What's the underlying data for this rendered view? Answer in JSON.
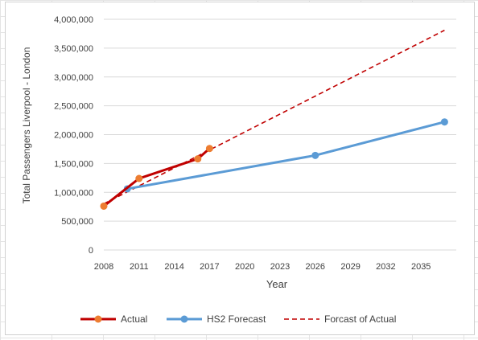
{
  "chart_data": {
    "type": "line",
    "title": "",
    "xlabel": "Year",
    "ylabel": "Total Passengers Liverpool - London",
    "xlim": [
      2008,
      2038
    ],
    "ylim": [
      0,
      4000000
    ],
    "x_ticks": [
      "2008",
      "2011",
      "2014",
      "2017",
      "2020",
      "2023",
      "2026",
      "2029",
      "2032",
      "2035"
    ],
    "y_ticks": [
      "0",
      "500,000",
      "1,000,000",
      "1,500,000",
      "2,000,000",
      "2,500,000",
      "3,000,000",
      "3,500,000",
      "4,000,000"
    ],
    "grid": true,
    "legend_position": "bottom",
    "series": [
      {
        "name": "Actual",
        "color": "#c00000",
        "marker_color": "#ed7d31",
        "style": "solid",
        "x": [
          2008,
          2011,
          2016,
          2017
        ],
        "y": [
          760000,
          1240000,
          1580000,
          1760000
        ]
      },
      {
        "name": "HS2 Forecast",
        "color": "#5b9bd5",
        "marker_color": "#5b9bd5",
        "style": "solid",
        "x": [
          2010,
          2026,
          2037
        ],
        "y": [
          1060000,
          1640000,
          2220000
        ]
      },
      {
        "name": "Forcast of Actual",
        "color": "#c00000",
        "style": "dashed",
        "x": [
          2008,
          2037
        ],
        "y": [
          800000,
          3810000
        ]
      }
    ]
  }
}
